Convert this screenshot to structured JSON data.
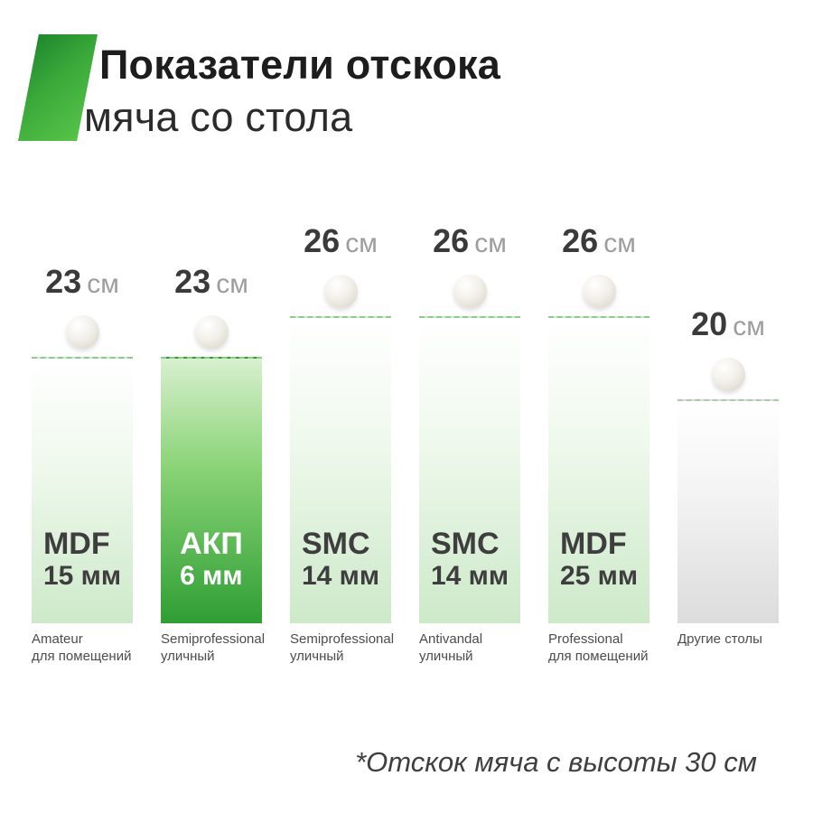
{
  "header": {
    "title_bold": "Показатели отскока",
    "title_regular": "мяча со стола"
  },
  "footnote": "*Отскок мяча с высоты 30 см",
  "colors": {
    "accent_green": "#2f9e33",
    "light_bar_bottom": "#cde9c9",
    "gray_bar_bottom": "#dcdcdc",
    "value_number": "#3a3a3a",
    "value_unit_gray": "#9d9d9d"
  },
  "chart_data": {
    "type": "bar",
    "title": "Показатели отскока мяча со стола",
    "unit": "см",
    "categories": [
      "MDF 15 мм",
      "АКП 6 мм",
      "SMC 14 мм",
      "SMC 14 мм",
      "MDF 25 мм",
      "Другие столы"
    ],
    "values": [
      23,
      23,
      26,
      26,
      26,
      20
    ],
    "category_subtitles": [
      "Amateur для помещений",
      "Semiprofessional уличный",
      "Semiprofessional уличный",
      "Antivandal уличный",
      "Professional для помещений",
      "Другие столы"
    ],
    "highlighted_index": 1,
    "ylim": [
      0,
      30
    ],
    "note": "*Отскок мяча с высоты 30 см"
  },
  "bars": [
    {
      "value": "23",
      "unit": "см",
      "material": "MDF",
      "thickness": "15 мм",
      "caption1": "Amateur",
      "caption2": "для помещений"
    },
    {
      "value": "23",
      "unit": "см",
      "material": "АКП",
      "thickness": "6 мм",
      "caption1": "Semiprofessional",
      "caption2": "уличный"
    },
    {
      "value": "26",
      "unit": "см",
      "material": "SMC",
      "thickness": "14 мм",
      "caption1": "Semiprofessional",
      "caption2": "уличный"
    },
    {
      "value": "26",
      "unit": "см",
      "material": "SMC",
      "thickness": "14 мм",
      "caption1": "Antivandal",
      "caption2": "уличный"
    },
    {
      "value": "26",
      "unit": "см",
      "material": "MDF",
      "thickness": "25 мм",
      "caption1": "Professional",
      "caption2": "для помещений"
    },
    {
      "value": "20",
      "unit": "см",
      "material": "",
      "thickness": "",
      "caption1": "Другие столы",
      "caption2": ""
    }
  ]
}
